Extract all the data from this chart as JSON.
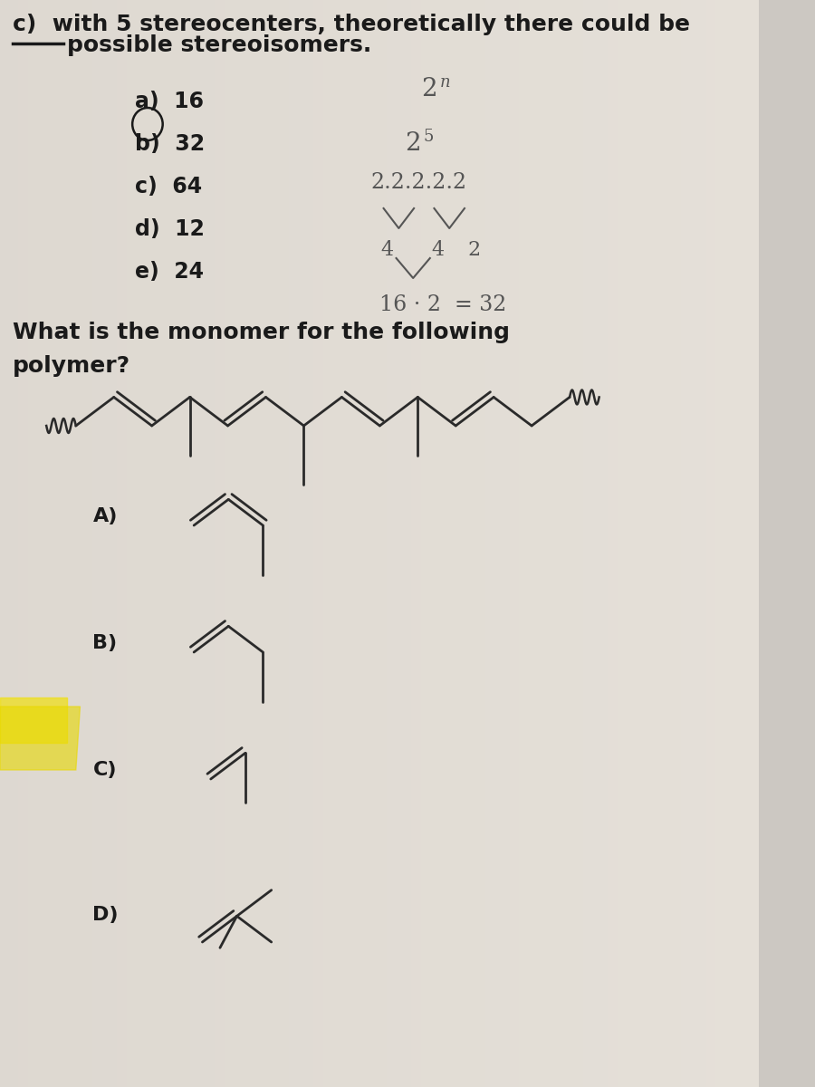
{
  "bg_color_top": "#d5cfc8",
  "bg_color_bot": "#c8c4be",
  "text_color": "#1a1a1a",
  "handwriting_color": "#555555",
  "choices": [
    "a)  16",
    "b)  32",
    "c)  64",
    "d)  12",
    "e)  24"
  ],
  "font_size_main": 18,
  "font_size_choices": 17,
  "font_size_hw": 16
}
